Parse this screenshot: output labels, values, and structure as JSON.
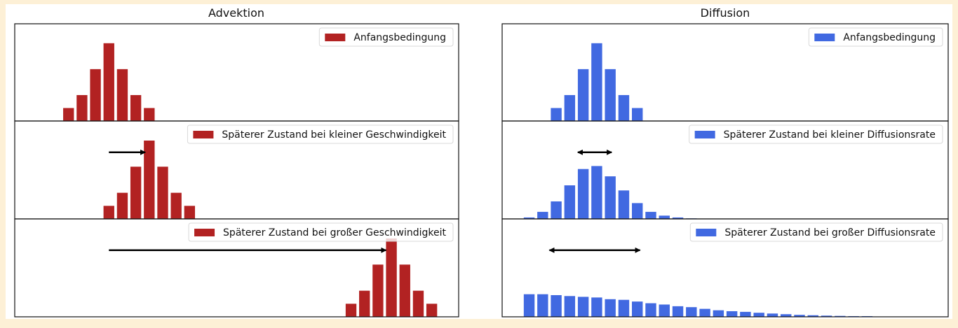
{
  "chart_data": [
    {
      "type": "bar",
      "title": "Advektion",
      "color": "#b22222",
      "xlim": [
        -1,
        32
      ],
      "ylim": [
        0,
        7.5
      ],
      "panels": [
        {
          "legend": "Anfangsbedingung",
          "x": [
            3,
            4,
            5,
            6,
            7,
            8,
            9
          ],
          "values": [
            1,
            2,
            4,
            6,
            4,
            2,
            1
          ]
        },
        {
          "legend": "Späterer Zustand bei kleiner Geschwindigkeit",
          "x": [
            6,
            7,
            8,
            9,
            10,
            11,
            12
          ],
          "values": [
            1,
            2,
            4,
            6,
            4,
            2,
            1
          ],
          "arrow": {
            "from": 6,
            "to": 8.7,
            "y": 5.1,
            "double": false
          }
        },
        {
          "legend": "Späterer Zustand bei großer Geschwindigkeit",
          "x": [
            24,
            25,
            26,
            27,
            28,
            29,
            30
          ],
          "values": [
            1,
            2,
            4,
            6,
            4,
            2,
            1
          ],
          "arrow": {
            "from": 6,
            "to": 26.6,
            "y": 5.1,
            "double": false
          }
        }
      ]
    },
    {
      "type": "bar",
      "title": "Diffusion",
      "color": "#4169e1",
      "xlim": [
        -1,
        32
      ],
      "ylim": [
        0,
        7.5
      ],
      "panels": [
        {
          "legend": "Anfangsbedingung",
          "x": [
            3,
            4,
            5,
            6,
            7,
            8,
            9
          ],
          "values": [
            1,
            2,
            4,
            6,
            4,
            2,
            1
          ]
        },
        {
          "legend": "Späterer Zustand bei kleiner Diffusionsrate",
          "x": [
            1,
            2,
            3,
            4,
            5,
            6,
            7,
            8,
            9,
            10,
            11,
            12,
            13
          ],
          "values": [
            0.11,
            0.54,
            1.34,
            2.57,
            3.82,
            4.05,
            3.26,
            2.18,
            1.21,
            0.54,
            0.25,
            0.11,
            0.04
          ],
          "arrow": {
            "from": 4.6,
            "to": 7.1,
            "y": 5.1,
            "double": true
          }
        },
        {
          "legend": "Späterer Zustand bei großer Diffusionsrate",
          "x": [
            1,
            2,
            3,
            4,
            5,
            6,
            7,
            8,
            9,
            10,
            11,
            12,
            13,
            14,
            15,
            16,
            17,
            18,
            19,
            20,
            21,
            22,
            23,
            24,
            25,
            26
          ],
          "values": [
            1.73,
            1.73,
            1.66,
            1.59,
            1.53,
            1.48,
            1.35,
            1.3,
            1.17,
            1.04,
            0.94,
            0.81,
            0.74,
            0.61,
            0.5,
            0.43,
            0.38,
            0.31,
            0.25,
            0.2,
            0.15,
            0.12,
            0.09,
            0.07,
            0.05,
            0.05
          ],
          "arrow": {
            "from": 2.5,
            "to": 9.2,
            "y": 5.1,
            "double": true
          }
        }
      ]
    }
  ]
}
